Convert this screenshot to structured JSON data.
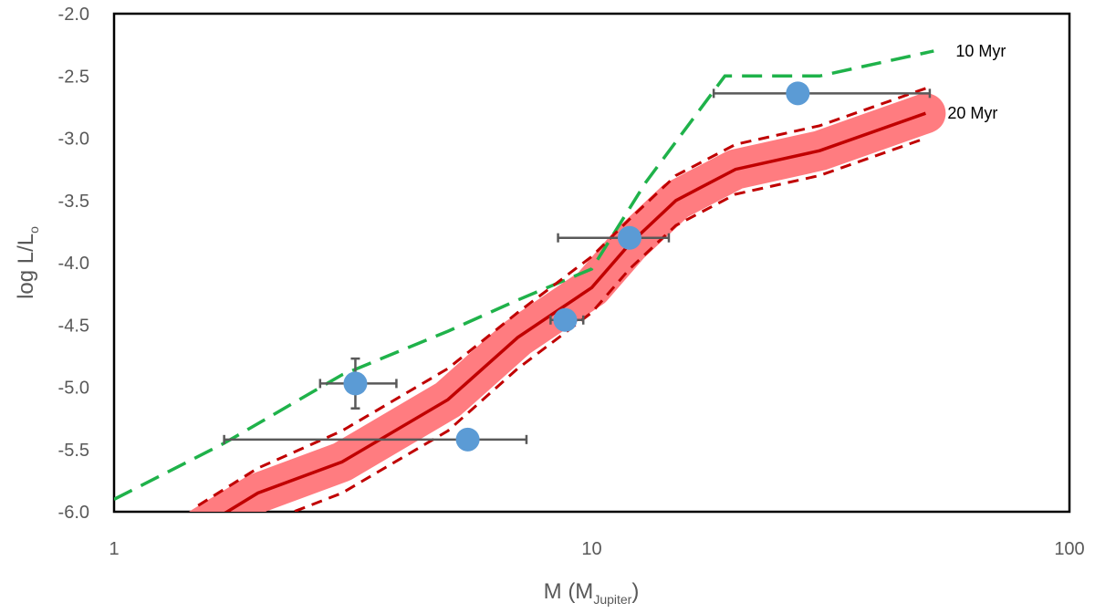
{
  "chart_data": {
    "type": "scatter",
    "title": "",
    "xlabel": {
      "main": "M (M",
      "sub": "Jupiter",
      "close": ")"
    },
    "ylabel": {
      "main": "log L/L",
      "sub": "o"
    },
    "x_scale": "log",
    "xlim": [
      1,
      100
    ],
    "ylim": [
      -6.0,
      -2.0
    ],
    "x_ticks": [
      {
        "value": 1,
        "label": "1"
      },
      {
        "value": 10,
        "label": "10"
      },
      {
        "value": 100,
        "label": "100"
      }
    ],
    "y_ticks": [
      {
        "value": -2.0,
        "label": "-2.0"
      },
      {
        "value": -2.5,
        "label": "-2.5"
      },
      {
        "value": -3.0,
        "label": "-3.0"
      },
      {
        "value": -3.5,
        "label": "-3.5"
      },
      {
        "value": -4.0,
        "label": "-4.0"
      },
      {
        "value": -4.5,
        "label": "-4.5"
      },
      {
        "value": -5.0,
        "label": "-5.0"
      },
      {
        "value": -5.5,
        "label": "-5.5"
      },
      {
        "value": -6.0,
        "label": "-6.0"
      }
    ],
    "colors": {
      "band": "#ff7c80",
      "line_20myr": "#c00000",
      "line_10myr": "#1fb24a",
      "points": "#5b9bd5",
      "errorbars": "#595959",
      "frame": "#000000"
    },
    "series": [
      {
        "name": "10 Myr",
        "kind": "dashed-line",
        "x": [
          1.0,
          1.7,
          3.0,
          5.0,
          7.0,
          10.0,
          13.0,
          19.0,
          30.0,
          52.0
        ],
        "y": [
          -5.9,
          -5.45,
          -4.9,
          -4.55,
          -4.3,
          -4.05,
          -3.35,
          -2.5,
          -2.5,
          -2.3
        ]
      },
      {
        "name": "20 Myr",
        "kind": "solid-line",
        "x": [
          1.35,
          2.0,
          3.0,
          5.0,
          7.0,
          10.0,
          12.0,
          15.0,
          20.0,
          30.0,
          50.0
        ],
        "y": [
          -6.25,
          -5.85,
          -5.6,
          -5.1,
          -4.6,
          -4.2,
          -3.85,
          -3.5,
          -3.25,
          -3.1,
          -2.8
        ]
      },
      {
        "name": "20 Myr upper",
        "kind": "dashed-line",
        "x": [
          1.5,
          2.0,
          3.0,
          5.0,
          7.0,
          10.0,
          12.0,
          15.0,
          20.0,
          30.0,
          50.0
        ],
        "y": [
          -5.95,
          -5.65,
          -5.35,
          -4.85,
          -4.4,
          -3.95,
          -3.65,
          -3.3,
          -3.05,
          -2.9,
          -2.6
        ]
      },
      {
        "name": "20 Myr lower",
        "kind": "dashed-line",
        "x": [
          2.2,
          3.0,
          5.0,
          7.0,
          10.0,
          12.0,
          15.0,
          20.0,
          30.0,
          50.0
        ],
        "y": [
          -6.05,
          -5.85,
          -5.35,
          -4.85,
          -4.4,
          -4.05,
          -3.7,
          -3.45,
          -3.3,
          -3.0
        ]
      },
      {
        "name": "20 Myr band",
        "kind": "band",
        "x": [
          1.35,
          2.0,
          3.0,
          5.0,
          7.0,
          10.0,
          12.0,
          15.0,
          20.0,
          30.0,
          50.0
        ],
        "y": [
          -6.25,
          -5.85,
          -5.6,
          -5.1,
          -4.6,
          -4.2,
          -3.85,
          -3.5,
          -3.25,
          -3.1,
          -2.8
        ]
      }
    ],
    "points": [
      {
        "x": 3.2,
        "y": -4.97,
        "x_low": 2.7,
        "x_high": 3.9,
        "y_low": -5.17,
        "y_high": -4.77
      },
      {
        "x": 5.5,
        "y": -5.42,
        "x_low": 1.7,
        "x_high": 7.3,
        "y_low": null,
        "y_high": null
      },
      {
        "x": 8.8,
        "y": -4.46,
        "x_low": 8.2,
        "x_high": 9.6,
        "y_low": null,
        "y_high": null
      },
      {
        "x": 12.0,
        "y": -3.8,
        "x_low": 8.5,
        "x_high": 14.5,
        "y_low": null,
        "y_high": null
      },
      {
        "x": 27.0,
        "y": -2.64,
        "x_low": 18.0,
        "x_high": 51.0,
        "y_low": null,
        "y_high": null
      }
    ],
    "annotations": [
      {
        "text": "10 Myr",
        "at_x": 52.0,
        "at_y": -2.3
      },
      {
        "text": "20 Myr",
        "at_x": 50.0,
        "at_y": -2.8
      }
    ],
    "grid": false,
    "legend": "none"
  }
}
